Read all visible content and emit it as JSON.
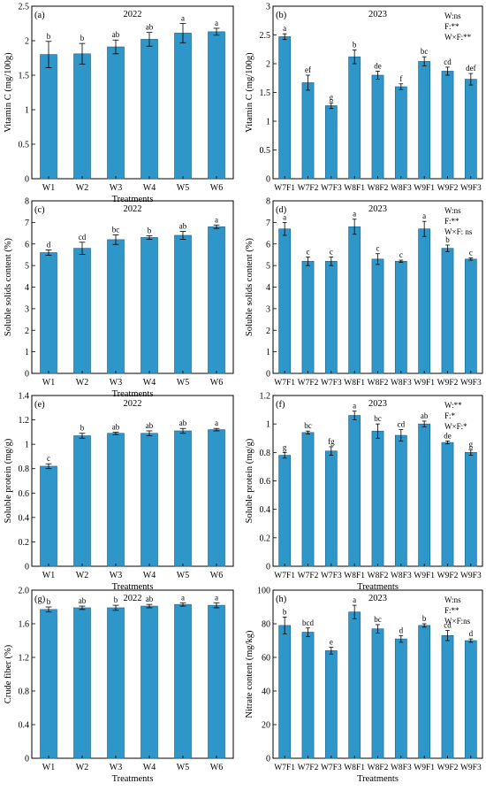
{
  "style": {
    "bar_fill": "#2f96c9",
    "bar_stroke": "#1d5f83",
    "axis_color": "#000000",
    "background": "#ffffff"
  },
  "chart_data": [
    {
      "type": "bar",
      "panel": "(a)",
      "title": "2022",
      "xlabel": "Treatments",
      "ylabel": "Vitamin C (mg/100g)",
      "ylim": [
        0,
        2.5
      ],
      "yticks": [
        "0",
        "0.5",
        "1",
        "1.5",
        "2",
        "2.5"
      ],
      "categories": [
        "W1",
        "W2",
        "W3",
        "W4",
        "W5",
        "W6"
      ],
      "values": [
        1.8,
        1.81,
        1.91,
        2.02,
        2.11,
        2.13
      ],
      "errors": [
        0.19,
        0.15,
        0.1,
        0.1,
        0.14,
        0.05
      ],
      "labels": [
        "b",
        "b",
        "ab",
        "ab",
        "a",
        "a"
      ],
      "annotation": [],
      "grid": false
    },
    {
      "type": "bar",
      "panel": "(b)",
      "title": "2023",
      "xlabel": "",
      "ylabel": "Vitamin C (mg/100g)",
      "ylim": [
        0,
        3.0
      ],
      "yticks": [
        "0",
        "0.5",
        "1",
        "1.5",
        "2",
        "2.5",
        "3"
      ],
      "categories": [
        "W7F1",
        "W7F2",
        "W7F3",
        "W8F1",
        "W8F2",
        "W8F3",
        "W9F1",
        "W9F2",
        "W9F3"
      ],
      "values": [
        2.47,
        1.67,
        1.27,
        2.12,
        1.8,
        1.6,
        2.04,
        1.87,
        1.73
      ],
      "errors": [
        0.05,
        0.13,
        0.05,
        0.12,
        0.07,
        0.05,
        0.08,
        0.07,
        0.1
      ],
      "labels": [
        "a",
        "ef",
        "g",
        "b",
        "de",
        "f",
        "bc",
        "cd",
        "def"
      ],
      "annotation": [
        "W:ns",
        "F:**",
        "W×F:**"
      ],
      "grid": false
    },
    {
      "type": "bar",
      "panel": "(c)",
      "title": "2022",
      "xlabel": "Treatments",
      "ylabel": "Soluble solids content (%)",
      "ylim": [
        0,
        8
      ],
      "yticks": [
        "0",
        "1",
        "2",
        "3",
        "4",
        "5",
        "6",
        "7",
        "8"
      ],
      "categories": [
        "W1",
        "W2",
        "W3",
        "W4",
        "W5",
        "W6"
      ],
      "values": [
        5.6,
        5.8,
        6.2,
        6.3,
        6.4,
        6.8
      ],
      "errors": [
        0.12,
        0.28,
        0.22,
        0.08,
        0.18,
        0.08
      ],
      "labels": [
        "d",
        "cd",
        "bc",
        "b",
        "ab",
        "a"
      ],
      "annotation": [],
      "grid": false
    },
    {
      "type": "bar",
      "panel": "(d)",
      "title": "2023",
      "xlabel": "",
      "ylabel": "Soluble solids content (%)",
      "ylim": [
        0,
        8
      ],
      "yticks": [
        "0",
        "1",
        "2",
        "3",
        "4",
        "5",
        "6",
        "7",
        "8"
      ],
      "categories": [
        "W7F1",
        "W7F2",
        "W7F3",
        "W8F1",
        "W8F2",
        "W8F3",
        "W9F1",
        "W9F2",
        "W9F3"
      ],
      "values": [
        6.7,
        5.2,
        5.2,
        6.8,
        5.3,
        5.2,
        6.7,
        5.8,
        5.3
      ],
      "errors": [
        0.3,
        0.2,
        0.2,
        0.35,
        0.25,
        0.05,
        0.35,
        0.15,
        0.05
      ],
      "labels": [
        "a",
        "c",
        "c",
        "a",
        "c",
        "c",
        "a",
        "b",
        "c"
      ],
      "annotation": [
        "W:ns",
        "F:**",
        "W×F: ns"
      ],
      "grid": false
    },
    {
      "type": "bar",
      "panel": "(e)",
      "title": "2022",
      "xlabel": "Treatments",
      "ylabel": "Soluble protein (mg/g)",
      "ylim": [
        0,
        1.4
      ],
      "yticks": [
        "0",
        "0.2",
        "0.4",
        "0.6",
        "0.8",
        "1",
        "1.2",
        "1.4"
      ],
      "categories": [
        "W1",
        "W2",
        "W3",
        "W4",
        "W5",
        "W6"
      ],
      "values": [
        0.82,
        1.07,
        1.09,
        1.09,
        1.11,
        1.12
      ],
      "errors": [
        0.02,
        0.02,
        0.01,
        0.02,
        0.02,
        0.01
      ],
      "labels": [
        "c",
        "b",
        "ab",
        "ab",
        "ab",
        "a"
      ],
      "annotation": [],
      "grid": false
    },
    {
      "type": "bar",
      "panel": "(f)",
      "title": "2023",
      "xlabel": "Treatments",
      "ylabel": "Soluble protein (mg/g)",
      "ylim": [
        0,
        1.2
      ],
      "yticks": [
        "0",
        "0.2",
        "0.4",
        "0.6",
        "0.8",
        "1",
        "1.2"
      ],
      "categories": [
        "W7F1",
        "W7F2",
        "W7F3",
        "W8F1",
        "W8F2",
        "W8F3",
        "W9F1",
        "W9F2",
        "W9F3"
      ],
      "values": [
        0.78,
        0.94,
        0.81,
        1.06,
        0.95,
        0.92,
        1.0,
        0.87,
        0.8
      ],
      "errors": [
        0.02,
        0.01,
        0.03,
        0.03,
        0.05,
        0.04,
        0.02,
        0.01,
        0.02
      ],
      "labels": [
        "g",
        "bc",
        "fg",
        "a",
        "bc",
        "cd",
        "ab",
        "de",
        "g"
      ],
      "annotation": [
        "W:**",
        "F:*",
        "W×F:*"
      ],
      "grid": false
    },
    {
      "type": "bar",
      "panel": "(g)",
      "title": "2022",
      "xlabel": "Treatments",
      "ylabel": "Crude fiber (%)",
      "ylim": [
        0,
        2.0
      ],
      "yticks": [
        "0",
        "0.4",
        "0.8",
        "1.2",
        "1.6",
        "2.0"
      ],
      "categories": [
        "W1",
        "W2",
        "W3",
        "W4",
        "W5",
        "W6"
      ],
      "values": [
        1.77,
        1.79,
        1.79,
        1.81,
        1.83,
        1.82
      ],
      "errors": [
        0.03,
        0.02,
        0.03,
        0.02,
        0.02,
        0.03
      ],
      "labels": [
        "b",
        "ab",
        "b",
        "ab",
        "a",
        "a"
      ],
      "annotation": [],
      "grid": false
    },
    {
      "type": "bar",
      "panel": "(h)",
      "title": "2023",
      "xlabel": "Treatments",
      "ylabel": "Nitrate content (mg/kg)",
      "ylim": [
        0,
        100
      ],
      "yticks": [
        "0",
        "20",
        "40",
        "60",
        "80",
        "100"
      ],
      "categories": [
        "W7F1",
        "W7F2",
        "W7F3",
        "W8F1",
        "W8F2",
        "W8F3",
        "W9F1",
        "W9F2",
        "W9F3"
      ],
      "values": [
        79,
        75,
        64,
        87,
        77,
        71,
        79,
        73,
        70
      ],
      "errors": [
        5,
        2.5,
        2,
        4,
        2.5,
        2,
        1,
        3,
        1
      ],
      "labels": [
        "b",
        "bcd",
        "e",
        "a",
        "bc",
        "d",
        "b",
        "cd",
        "d"
      ],
      "annotation": [
        "W:ns",
        "F:**",
        "W×F:ns"
      ],
      "grid": false
    }
  ]
}
